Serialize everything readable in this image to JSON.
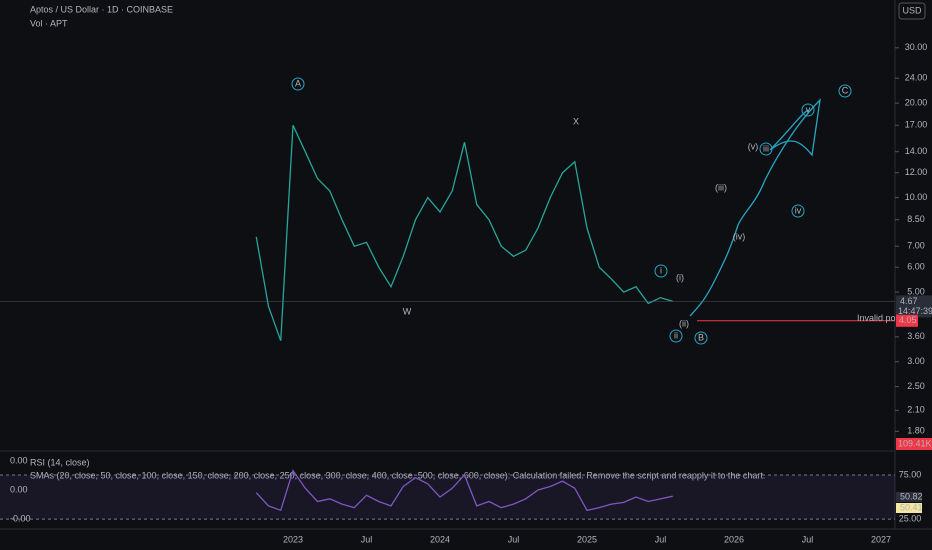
{
  "header": {
    "symbol": "Aptos / US Dollar · 1D · COINBASE",
    "volume": "Vol · APT",
    "currency": "USD"
  },
  "chart_data": [
    {
      "type": "line",
      "log": true,
      "color": "#26a69a",
      "x": [
        "2022-10",
        "2022-11",
        "2022-12",
        "2023-01",
        "2023-02",
        "2023-03",
        "2023-04",
        "2023-05",
        "2023-06",
        "2023-07",
        "2023-08",
        "2023-09",
        "2023-10",
        "2023-11",
        "2023-12",
        "2024-01",
        "2024-02",
        "2024-03",
        "2024-04",
        "2024-05",
        "2024-06",
        "2024-07",
        "2024-08",
        "2024-09",
        "2024-10",
        "2024-11",
        "2024-12",
        "2025-01",
        "2025-02",
        "2025-03",
        "2025-04",
        "2025-05",
        "2025-06",
        "2025-07",
        "2025-08"
      ],
      "series": [
        {
          "name": "APT",
          "color": "#26a69a",
          "values": [
            7.5,
            4.5,
            3.5,
            17,
            14,
            11.5,
            10.5,
            8.5,
            7,
            7.2,
            6,
            5.2,
            6.5,
            8.5,
            10,
            9,
            10.5,
            15,
            9.5,
            8.5,
            7,
            6.5,
            6.8,
            8,
            10,
            12,
            13,
            8,
            6,
            5.5,
            5,
            5.2,
            4.6,
            4.8,
            4.67
          ]
        }
      ],
      "ylim": [
        1.57,
        42.6
      ],
      "yticks": [
        {
          "value": 30,
          "label": "30.00"
        },
        {
          "value": 24,
          "label": "24.00"
        },
        {
          "value": 20,
          "label": "20.00"
        },
        {
          "value": 17,
          "label": "17.00"
        },
        {
          "value": 14,
          "label": "14.00"
        },
        {
          "value": 12,
          "label": "12.00"
        },
        {
          "value": 10,
          "label": "10.00"
        },
        {
          "value": 8.5,
          "label": "8.50"
        },
        {
          "value": 7,
          "label": "7.00"
        },
        {
          "value": 6,
          "label": "6.00"
        },
        {
          "value": 5,
          "label": "5.00"
        },
        {
          "value": 3.6,
          "label": "3.60"
        },
        {
          "value": 3,
          "label": "3.00"
        },
        {
          "value": 2.5,
          "label": "2.50"
        },
        {
          "value": 2.1,
          "label": "2.10"
        },
        {
          "value": 1.8,
          "label": "1.80"
        }
      ],
      "xticks": [
        {
          "value": "2023-01",
          "label": "2023"
        },
        {
          "value": "2023-07",
          "label": "Jul"
        },
        {
          "value": "2024-01",
          "label": "2024"
        },
        {
          "value": "2024-07",
          "label": "Jul"
        },
        {
          "value": "2025-01",
          "label": "2025"
        },
        {
          "value": "2025-07",
          "label": "Jul"
        },
        {
          "value": "2026-01",
          "label": "2026"
        },
        {
          "value": "2026-07",
          "label": "Jul"
        },
        {
          "value": "2027-01",
          "label": "2027"
        }
      ],
      "last_price": {
        "value": 4.67,
        "label": "4.67",
        "countdown": "14:47:39"
      },
      "invalid": {
        "value": 4.05,
        "label": "4.05",
        "text": "Invalid point"
      },
      "volume_label": "109.41K",
      "annotations": [
        "A",
        "W",
        "X",
        "C",
        "B",
        "i",
        "ii",
        "(i)",
        "(ii)",
        "(iii)",
        "(iv)",
        "(v)",
        "iii",
        "iv",
        "v"
      ]
    },
    {
      "type": "line",
      "title": "RSI (14, close)",
      "note": "SMAs (20, close, 50, close, 100, close, 150, close, 200, close, 250, close, 300, close, 400, close, 500, close, 600, close): Calculation failed. Remove the script and reapply it to the chart.",
      "series": [
        {
          "name": "RSI",
          "color": "#7e57c2",
          "values": [
            55,
            40,
            35,
            80,
            60,
            45,
            48,
            42,
            38,
            52,
            45,
            40,
            62,
            72,
            65,
            50,
            60,
            75,
            40,
            45,
            38,
            42,
            48,
            58,
            62,
            68,
            60,
            35,
            38,
            42,
            44,
            50,
            45,
            48,
            51
          ]
        }
      ],
      "ylim": [
        15,
        101
      ],
      "yticks": [
        {
          "value": 75,
          "label": "75.00"
        },
        {
          "value": 25,
          "label": "25.00"
        }
      ],
      "last_labels": [
        "50.82",
        "50.41"
      ],
      "left_labels": [
        "0.00",
        "0.00",
        "-0.00"
      ]
    }
  ]
}
